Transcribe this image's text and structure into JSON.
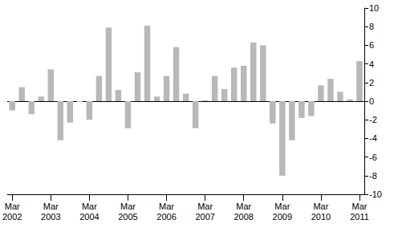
{
  "chart_data": {
    "type": "bar",
    "categories": [
      "Mar 2002",
      null,
      null,
      null,
      "Mar 2003",
      null,
      null,
      null,
      "Mar 2004",
      null,
      null,
      null,
      "Mar 2005",
      null,
      null,
      null,
      "Mar 2006",
      null,
      null,
      null,
      "Mar 2007",
      null,
      null,
      null,
      "Mar 2008",
      null,
      null,
      null,
      "Mar 2009",
      null,
      null,
      null,
      "Mar 2010",
      null,
      null,
      null,
      "Mar 2011"
    ],
    "values": [
      -1.0,
      1.5,
      -1.4,
      0.5,
      3.4,
      -4.2,
      -2.3,
      -0.1,
      -2.0,
      2.7,
      7.9,
      1.2,
      -2.9,
      3.1,
      8.1,
      0.5,
      2.7,
      5.8,
      0.8,
      -2.9,
      0.1,
      2.7,
      1.3,
      3.6,
      3.8,
      6.3,
      6.0,
      -2.4,
      -8.0,
      -4.2,
      -1.8,
      -1.6,
      1.7,
      2.4,
      1.0,
      0.2,
      4.3
    ],
    "color": "#b8b8b8",
    "ylim": [
      -10,
      10
    ],
    "yticks": [
      -10,
      -8,
      -6,
      -4,
      -2,
      0,
      2,
      4,
      6,
      8,
      10
    ],
    "grid": false
  }
}
